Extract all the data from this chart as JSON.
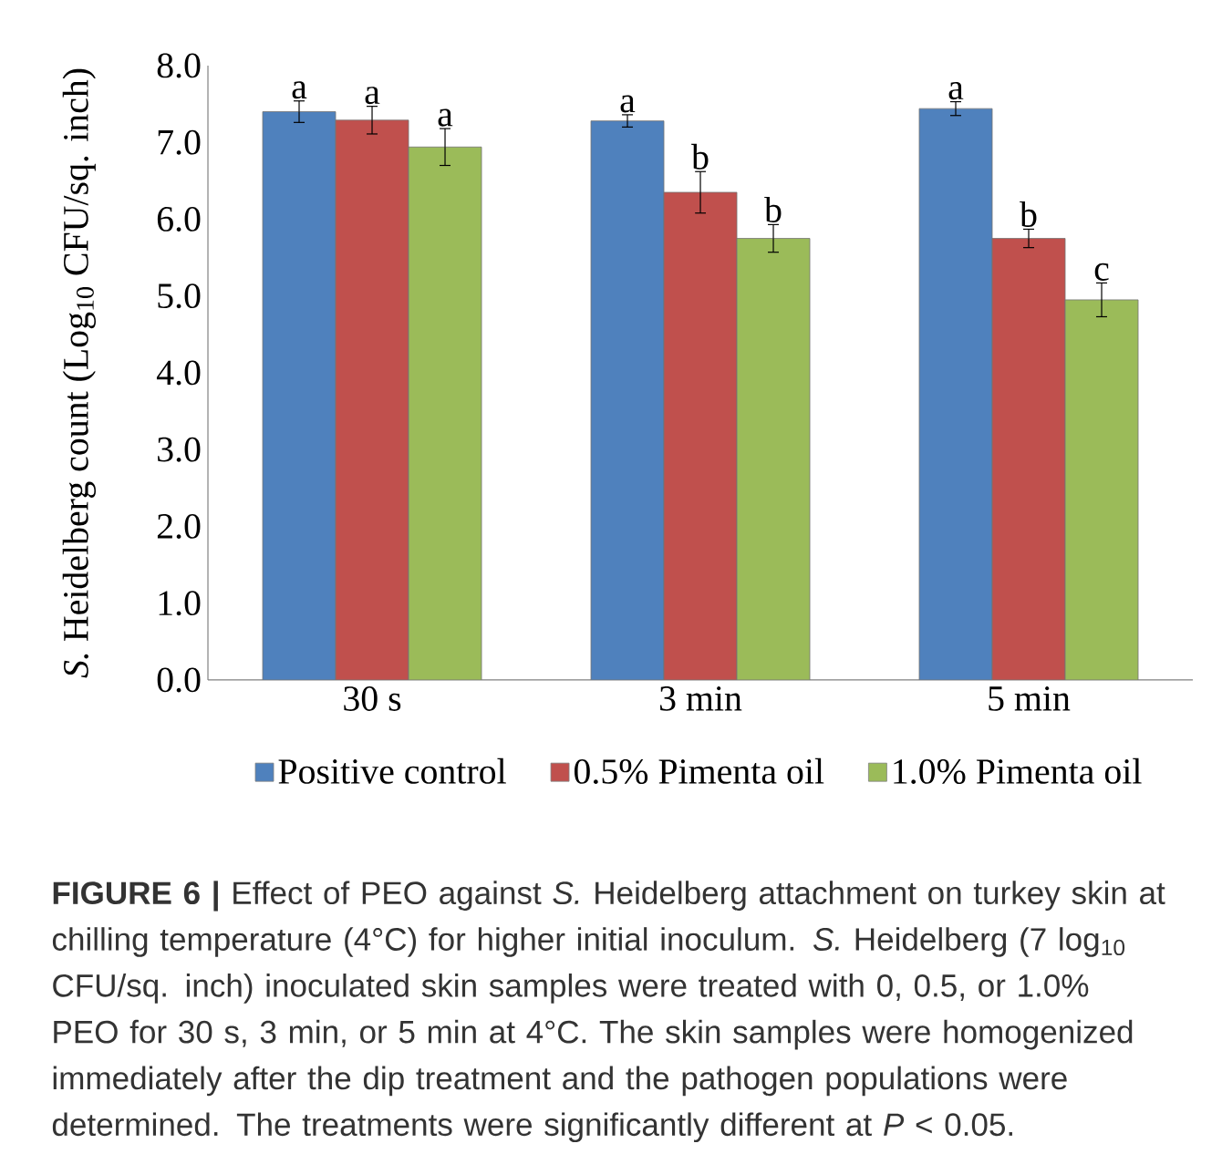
{
  "chart_data": {
    "type": "bar",
    "ylabel": "*S.* Heidelberg count (Log$_{10}$ CFU/sq. inch)",
    "categories": [
      "30 s",
      "3 min",
      "5 min"
    ],
    "series": [
      {
        "name": "Positive control",
        "color": "#4f81bd",
        "values": [
          7.4,
          7.28,
          7.44
        ],
        "errors": [
          0.14,
          0.08,
          0.09
        ]
      },
      {
        "name": "0.5% Pimenta oil",
        "color": "#c0504d",
        "values": [
          7.29,
          6.35,
          5.75
        ],
        "errors": [
          0.18,
          0.27,
          0.12
        ]
      },
      {
        "name": "1.0% Pimenta oil",
        "color": "#9bbb59",
        "values": [
          6.94,
          5.75,
          4.95
        ],
        "errors": [
          0.24,
          0.18,
          0.22
        ]
      }
    ],
    "ylim": [
      0,
      8
    ],
    "yticks": [
      {
        "value": 0,
        "label": "0.0"
      },
      {
        "value": 1,
        "label": "1.0"
      },
      {
        "value": 2,
        "label": "2.0"
      },
      {
        "value": 3,
        "label": "3.0"
      },
      {
        "value": 4,
        "label": "4.0"
      },
      {
        "value": 5,
        "label": "5.0"
      },
      {
        "value": 6,
        "label": "6.0"
      },
      {
        "value": 7,
        "label": "7.0"
      },
      {
        "value": 8,
        "label": "8.0"
      }
    ],
    "legend": "bottom",
    "annotations": [
      "a",
      "a",
      "a",
      "a",
      "b",
      "b",
      "a",
      "b",
      "c",
      "**FIGURE 6 |** Effect of PEO against *S.* Heidelberg attachment on turkey skin at chilling temperature (4°C) for higher initial inoculum. *S.* Heidelberg (7 log$_{10}$ CFU/sq. inch) inoculated skin samples were treated with 0, 0.5, or 1.0% PEO for 30 s, 3 min, or 5 min at 4°C. The skin samples were homogenized immediately after the dip treatment and the pathogen populations were determined. The treatments were significantly different at *P* < 0.05."
    ]
  }
}
